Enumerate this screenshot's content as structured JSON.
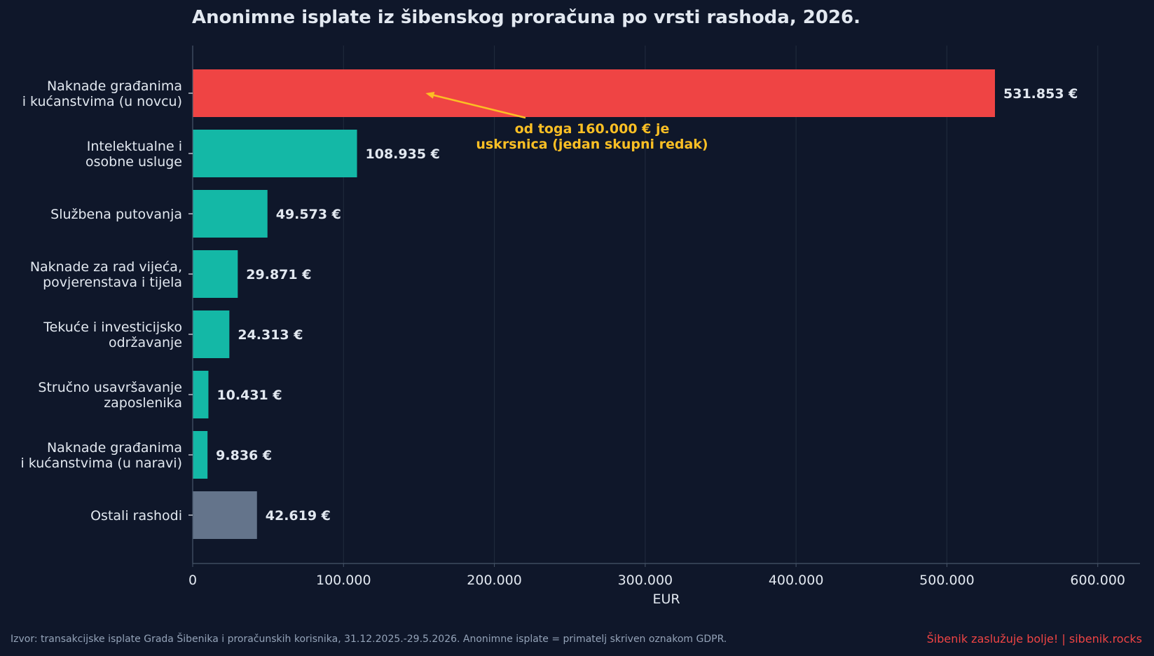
{
  "chart_data": {
    "type": "bar",
    "orientation": "horizontal",
    "title": "Anonimne isplate iz šibenskog proračuna po vrsti rashoda, 2026.",
    "xlabel": "EUR",
    "ylabel": "",
    "xlim": [
      0,
      628000
    ],
    "xticks": [
      0,
      100000,
      200000,
      300000,
      400000,
      500000,
      600000
    ],
    "xtick_labels": [
      "0",
      "100.000",
      "200.000",
      "300.000",
      "400.000",
      "500.000",
      "600.000"
    ],
    "grid": "vertical",
    "categories": [
      [
        "Naknade građanima",
        "i kućanstvima (u novcu)"
      ],
      [
        "Intelektualne i",
        "osobne usluge"
      ],
      [
        "Službena putovanja"
      ],
      [
        "Naknade za rad vijeća,",
        "povjerenstava i tijela"
      ],
      [
        "Tekuće i investicijsko",
        "održavanje"
      ],
      [
        "Stručno usavršavanje",
        "zaposlenika"
      ],
      [
        "Naknade građanima",
        "i kućanstvima (u naravi)"
      ],
      [
        "Ostali rashodi"
      ]
    ],
    "values": [
      531853,
      108935,
      49573,
      29871,
      24313,
      10431,
      9836,
      42619
    ],
    "value_labels": [
      "531.853 €",
      "108.935 €",
      "49.573 €",
      "29.871 €",
      "24.313 €",
      "10.431 €",
      "9.836 €",
      "42.619 €"
    ],
    "bar_colors": [
      "#ef4444",
      "#14b8a6",
      "#14b8a6",
      "#14b8a6",
      "#14b8a6",
      "#14b8a6",
      "#14b8a6",
      "#64748b"
    ],
    "annotation": {
      "lines": [
        "od toga 160.000 € je",
        "uskrsnica (jedan skupni redak)"
      ],
      "target_value": 160000,
      "target_category_index": 0,
      "color": "#fbbf24"
    }
  },
  "colors": {
    "background": "#0f172a",
    "text": "#e2e8f0",
    "grid": "#1e293b",
    "axis": "#475569",
    "muted": "#94a3b8",
    "brand": "#ef4444"
  },
  "footer": {
    "source": "Izvor: transakcijske isplate Grada Šibenika i proračunskih korisnika, 31.12.2025.-29.5.2026. Anonimne isplate = primatelj skriven oznakom GDPR.",
    "brand": "Šibenik zaslužuje bolje!  |  sibenik.rocks"
  }
}
